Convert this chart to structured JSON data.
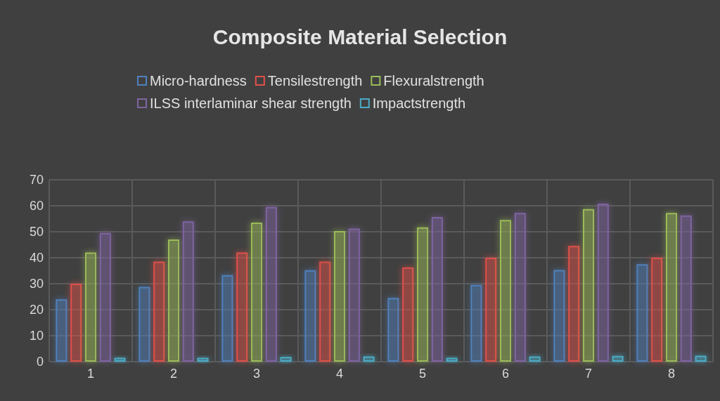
{
  "chart_data": {
    "type": "bar",
    "title": "Composite Material Selection",
    "categories": [
      "1",
      "2",
      "3",
      "4",
      "5",
      "6",
      "7",
      "8"
    ],
    "series": [
      {
        "name": "Micro-hardness",
        "color": "#4f81bd",
        "values": [
          24,
          28.8,
          33.3,
          35.2,
          24.5,
          29.5,
          35.3,
          37.5
        ]
      },
      {
        "name": "Tensilestrength",
        "color": "#e0504a",
        "values": [
          30,
          38.5,
          42,
          38.5,
          36.3,
          40,
          44.5,
          40
        ]
      },
      {
        "name": "Flexuralstrength",
        "color": "#9bbb59",
        "values": [
          42,
          47,
          53.5,
          50.3,
          51.7,
          54.5,
          58.7,
          57.2
        ]
      },
      {
        "name": "ILSS interlaminar shear strength",
        "color": "#8064a2",
        "values": [
          49.5,
          54,
          59.5,
          51.2,
          55.7,
          57.2,
          60.8,
          56.3
        ]
      },
      {
        "name": "Impactstrength",
        "color": "#4bacc6",
        "values": [
          1.5,
          1.5,
          1.8,
          2,
          1.5,
          2,
          2.2,
          2.3
        ]
      }
    ],
    "ylim": [
      0,
      70
    ],
    "yticks": [
      0,
      10,
      20,
      30,
      40,
      50,
      60,
      70
    ],
    "grid": true,
    "legend": "top"
  }
}
